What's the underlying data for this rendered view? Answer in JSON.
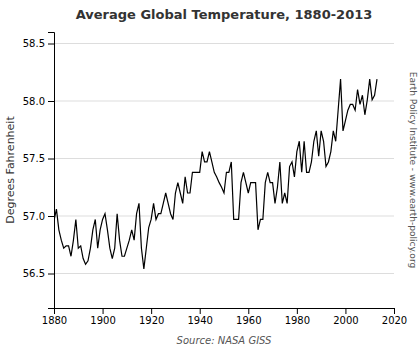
{
  "chart_data": {
    "type": "line",
    "title": "Average Global Temperature, 1880-2013",
    "y_label": "Degrees Fahrenheit",
    "annotations": [
      "Source: NASA GISS",
      "Earth Policy Institute - www.earth-policy.org"
    ],
    "color": "#000000",
    "grid": true,
    "xlim": [
      1880,
      2020
    ],
    "ylim": [
      56.2,
      58.6
    ],
    "xticks": [
      1880,
      1900,
      1920,
      1940,
      1960,
      1980,
      2000,
      2020
    ],
    "yticks": [
      56.5,
      {
        "value": 57,
        "label": "57.0"
      },
      57.5,
      {
        "value": 58,
        "label": "58.0"
      },
      58.5
    ],
    "x": [
      1880,
      1881,
      1882,
      1883,
      1884,
      1885,
      1886,
      1887,
      1888,
      1889,
      1890,
      1891,
      1892,
      1893,
      1894,
      1895,
      1896,
      1897,
      1898,
      1899,
      1900,
      1901,
      1902,
      1903,
      1904,
      1905,
      1906,
      1907,
      1908,
      1909,
      1910,
      1911,
      1912,
      1913,
      1914,
      1915,
      1916,
      1917,
      1918,
      1919,
      1920,
      1921,
      1922,
      1923,
      1924,
      1925,
      1926,
      1927,
      1928,
      1929,
      1930,
      1931,
      1932,
      1933,
      1934,
      1935,
      1936,
      1937,
      1938,
      1939,
      1940,
      1941,
      1942,
      1943,
      1944,
      1945,
      1946,
      1947,
      1948,
      1949,
      1950,
      1951,
      1952,
      1953,
      1954,
      1955,
      1956,
      1957,
      1958,
      1959,
      1960,
      1961,
      1962,
      1963,
      1964,
      1965,
      1966,
      1967,
      1968,
      1969,
      1970,
      1971,
      1972,
      1973,
      1974,
      1975,
      1976,
      1977,
      1978,
      1979,
      1980,
      1981,
      1982,
      1983,
      1984,
      1985,
      1986,
      1987,
      1988,
      1989,
      1990,
      1991,
      1992,
      1993,
      1994,
      1995,
      1996,
      1997,
      1998,
      1999,
      2000,
      2001,
      2002,
      2003,
      2004,
      2005,
      2006,
      2007,
      2008,
      2009,
      2010,
      2011,
      2012,
      2013
    ],
    "values": [
      56.96,
      57.06,
      56.88,
      56.79,
      56.72,
      56.74,
      56.74,
      56.65,
      56.79,
      56.97,
      56.72,
      56.74,
      56.63,
      56.58,
      56.61,
      56.72,
      56.88,
      56.97,
      56.72,
      56.88,
      56.97,
      57.02,
      56.88,
      56.72,
      56.63,
      56.72,
      57.02,
      56.79,
      56.65,
      56.65,
      56.72,
      56.79,
      56.88,
      56.79,
      57.02,
      57.11,
      56.72,
      56.54,
      56.72,
      56.9,
      56.97,
      57.11,
      56.97,
      57.02,
      57.02,
      57.11,
      57.2,
      57.11,
      57.02,
      56.97,
      57.2,
      57.29,
      57.2,
      57.11,
      57.34,
      57.2,
      57.2,
      57.38,
      57.38,
      57.38,
      57.38,
      57.56,
      57.47,
      57.47,
      57.56,
      57.47,
      57.38,
      57.34,
      57.29,
      57.25,
      57.2,
      57.38,
      57.38,
      57.47,
      56.97,
      56.97,
      56.97,
      57.29,
      57.38,
      57.29,
      57.2,
      57.29,
      57.29,
      57.29,
      56.88,
      56.97,
      56.97,
      57.29,
      57.38,
      57.29,
      57.29,
      57.11,
      57.25,
      57.47,
      57.11,
      57.2,
      57.11,
      57.43,
      57.47,
      57.34,
      57.56,
      57.65,
      57.38,
      57.65,
      57.38,
      57.38,
      57.47,
      57.65,
      57.74,
      57.52,
      57.74,
      57.65,
      57.43,
      57.47,
      57.56,
      57.74,
      57.65,
      57.92,
      58.19,
      57.74,
      57.83,
      57.92,
      57.97,
      57.97,
      57.92,
      58.1,
      57.97,
      58.05,
      57.88,
      58.01,
      58.19,
      58.01,
      58.05,
      58.19
    ]
  }
}
